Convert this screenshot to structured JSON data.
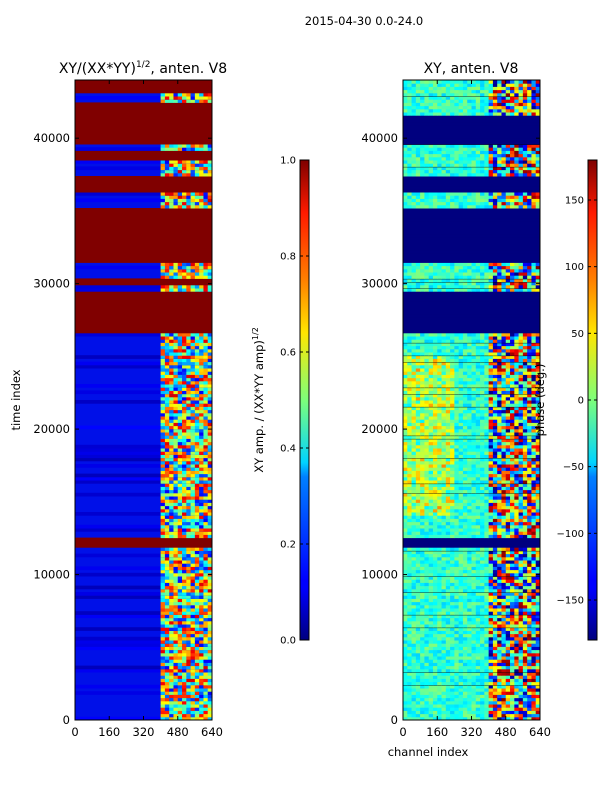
{
  "figure": {
    "suptitle": "2015-04-30 0.0-24.0"
  },
  "chart_data": [
    {
      "type": "heatmap",
      "title": "XY/(XX*YY)",
      "title_superscript": "1/2",
      "title_suffix": ", anten. V8",
      "xlabel": "",
      "ylabel": "time index",
      "xlim": [
        0,
        640
      ],
      "ylim": [
        0,
        44000
      ],
      "xticks": [
        0,
        160,
        320,
        480,
        640
      ],
      "yticks": [
        0,
        10000,
        20000,
        30000,
        40000
      ],
      "colormap": "jet",
      "saturated_time_bands": [
        [
          12000,
          12500
        ],
        [
          26800,
          29400
        ],
        [
          30000,
          30300
        ],
        [
          31600,
          35200
        ],
        [
          36400,
          37200
        ],
        [
          38600,
          39100
        ],
        [
          39600,
          41400
        ],
        [
          41600,
          42300
        ],
        [
          43200,
          44000
        ]
      ],
      "active_channel_range": [
        400,
        640
      ],
      "colorbar": {
        "label": "XY amp. / (XX*YY amp)",
        "label_superscript": "1/2",
        "range": [
          0.0,
          1.0
        ],
        "ticks": [
          "0.0",
          "0.2",
          "0.4",
          "0.6",
          "0.8",
          "1.0"
        ]
      }
    },
    {
      "type": "heatmap",
      "title": "XY, anten. V8",
      "xlabel": "channel index",
      "ylabel": "",
      "xlim": [
        0,
        640
      ],
      "ylim": [
        0,
        44000
      ],
      "xticks": [
        0,
        160,
        320,
        480,
        640
      ],
      "yticks": [
        0,
        10000,
        20000,
        30000,
        40000
      ],
      "colormap": "jet",
      "masked_time_bands": [
        [
          12000,
          12500
        ],
        [
          26800,
          29400
        ],
        [
          31600,
          35200
        ],
        [
          36400,
          37200
        ],
        [
          39600,
          41400
        ]
      ],
      "active_channel_range": [
        400,
        640
      ],
      "colorbar": {
        "label": "phase (deg.)",
        "range": [
          -180,
          180
        ],
        "ticks": [
          "150",
          "100",
          "50",
          "0",
          "−50",
          "−100",
          "−150"
        ],
        "tick_values": [
          150,
          100,
          50,
          0,
          -50,
          -100,
          -150
        ]
      }
    }
  ]
}
